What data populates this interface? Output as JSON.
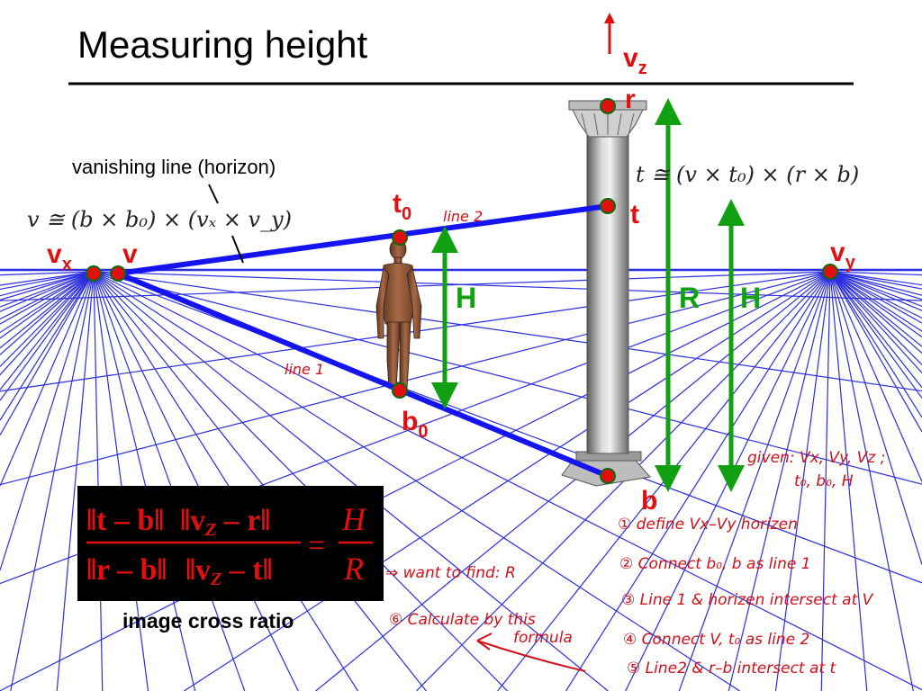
{
  "title": "Measuring height",
  "labels": {
    "vz_letter": "v",
    "vz_sub": "z",
    "r": "r",
    "t": "t",
    "t0_letter": "t",
    "t0_sub": "0",
    "vx_letter": "v",
    "vx_sub": "x",
    "v": "v",
    "vy_letter": "v",
    "vy_sub": "y",
    "b": "b",
    "b0_letter": "b",
    "b0_sub": "0",
    "H_person": "H",
    "R": "R",
    "H_column": "H"
  },
  "vanishing_line_label": "vanishing line (horizon)",
  "formula_v": "v ≅ (b × b₀) × (vₓ × v_y)",
  "formula_t": "t ≅ (v × t₀) × (r × b)",
  "cross_ratio": {
    "num_left": "‖t – b‖",
    "num_right": "‖v",
    "num_right_sub": "Z",
    "num_right_tail": " – r‖",
    "den_left": "‖r – b‖",
    "den_right": "‖v",
    "den_right_sub": "Z",
    "den_right_tail": " – t‖",
    "equals": "=",
    "rhs_num": "H",
    "rhs_den": "R",
    "caption": "image cross ratio"
  },
  "annotations": {
    "line2": "line 2",
    "line1": "line 1",
    "given_1": "given: Vx, Vy, Vz ;",
    "given_2": "t₀, b₀, H",
    "step1": "① define Vx–Vy horizen",
    "step2": "② Connect b₀, b as line 1",
    "step3": "③ Line 1 & horizen intersect at V",
    "step4": "④ Connect V, t₀ as line 2",
    "step5": "⑤ Line2 & r–b intersect at t",
    "step6_1": "⑥ Calculate by this",
    "step6_2": "formula",
    "want": "⇒ want to find: R"
  },
  "colors": {
    "grid": "#2b2ee0",
    "highlight": "#1414f0",
    "point": "#e01010",
    "green": "#11a011",
    "red": "#e01010"
  }
}
